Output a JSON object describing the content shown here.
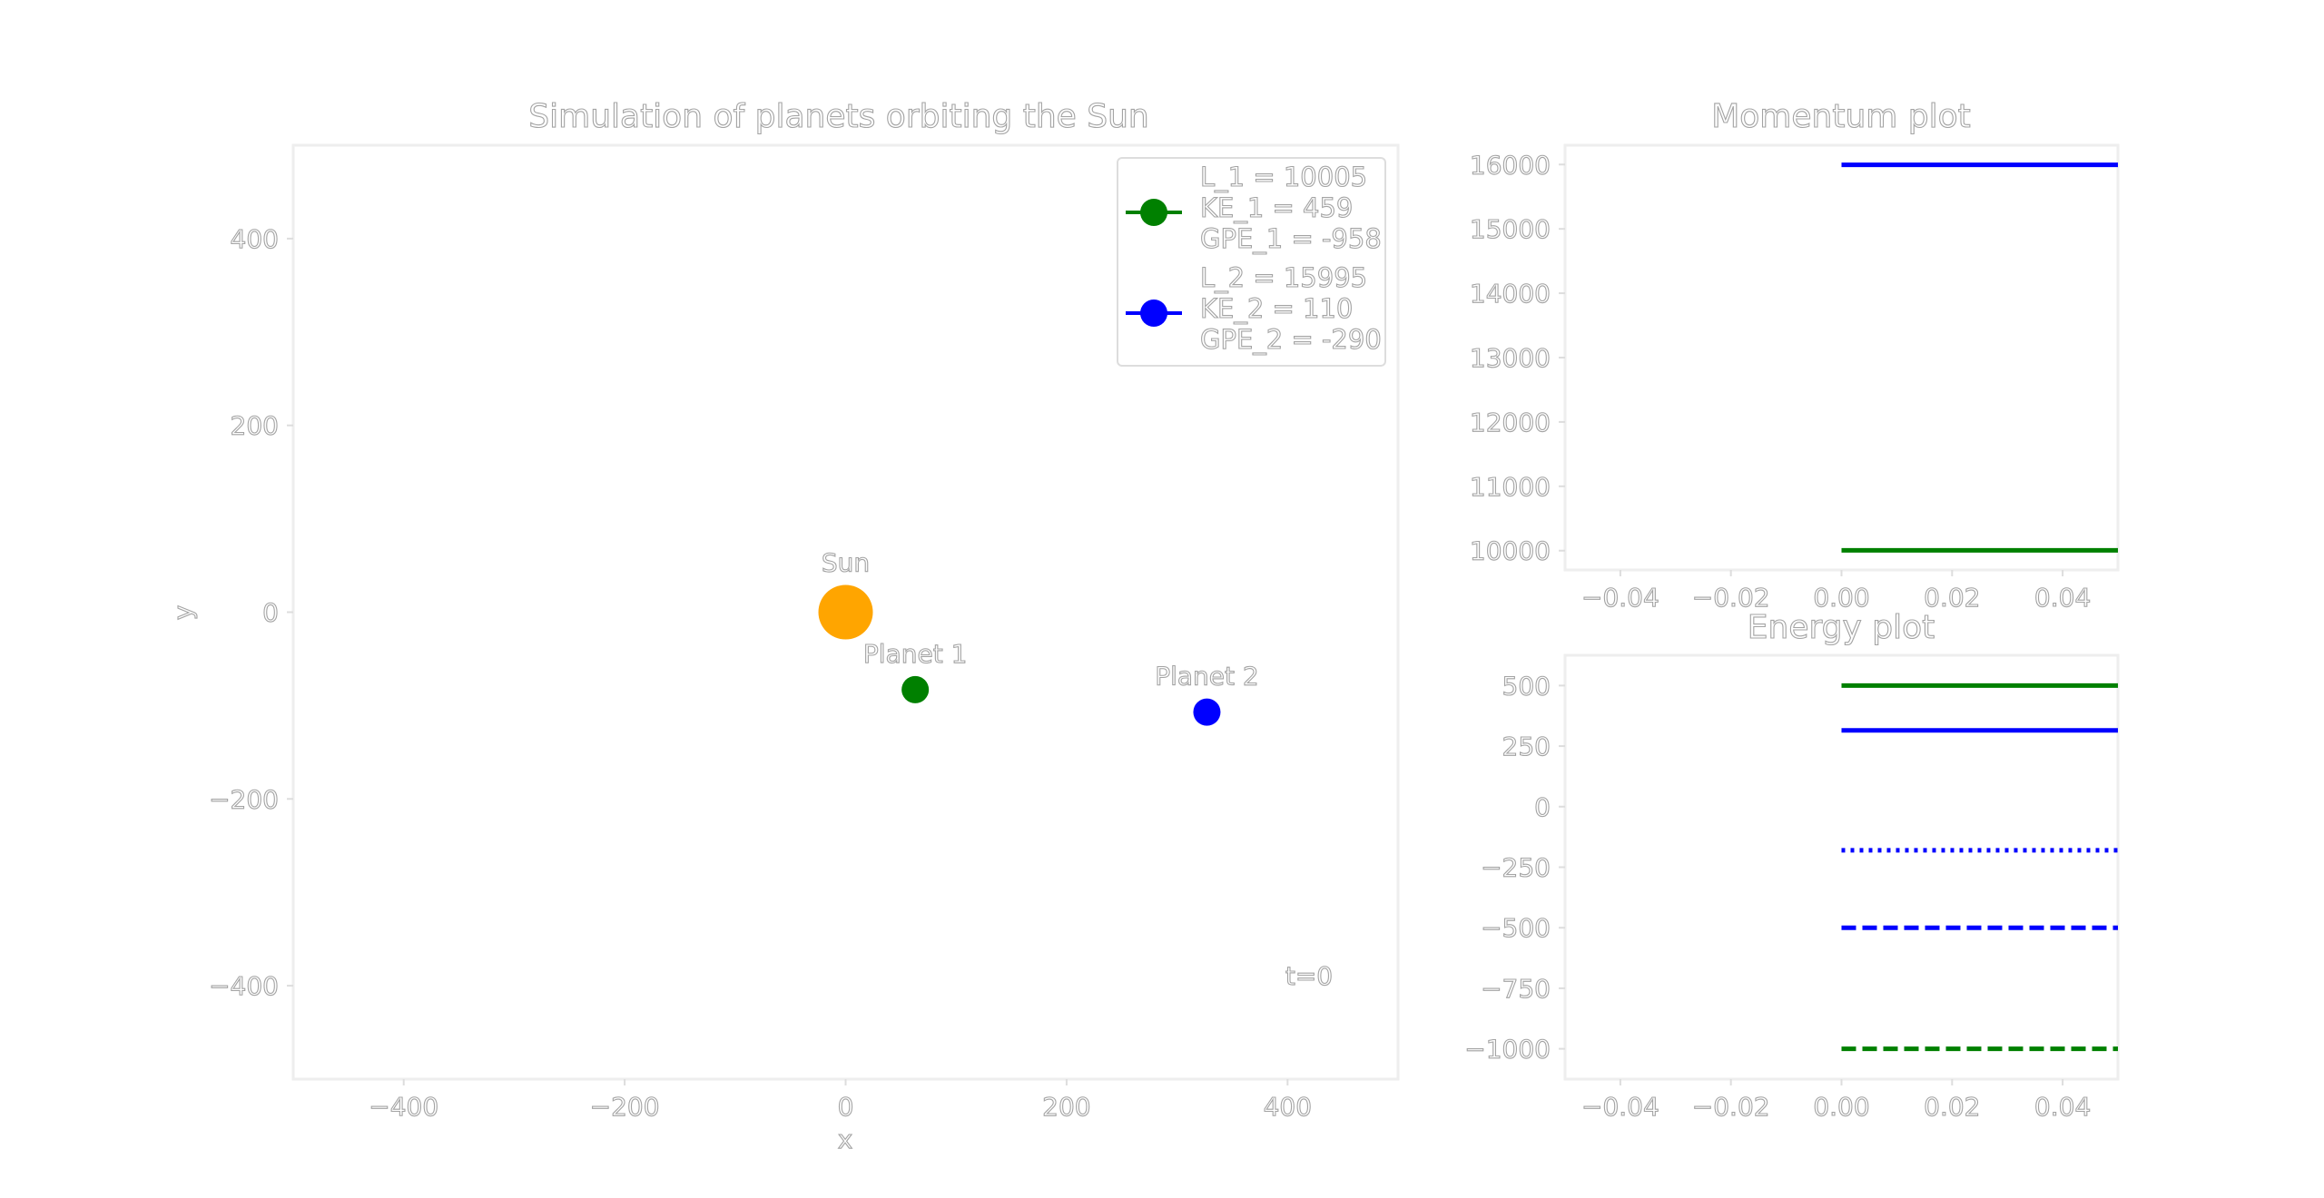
{
  "colors": {
    "sun": "#ffa500",
    "planet_1": "#008000",
    "planet_2": "#0000ff",
    "text": "#a3a3a3",
    "spine": "#eeeeee"
  },
  "chart_data": [
    {
      "id": "orbit",
      "type": "scatter",
      "title": "Simulation of planets orbiting the Sun",
      "xlabel": "x",
      "ylabel": "y",
      "xlim": [
        -500,
        500
      ],
      "ylim": [
        -500,
        500
      ],
      "xticks": [
        -400,
        -200,
        0,
        200,
        400
      ],
      "xtick_labels": [
        "−400",
        "−200",
        "0",
        "200",
        "400"
      ],
      "yticks": [
        400,
        200,
        0,
        -200,
        -400
      ],
      "ytick_labels": [
        "400",
        "200",
        "0",
        "−200",
        "−400"
      ],
      "points": [
        {
          "name": "Sun",
          "x": 0,
          "y": 0,
          "color": "#ffa500",
          "size": "large"
        },
        {
          "name": "Planet 1",
          "x": 63,
          "y": -83,
          "color": "#008000",
          "size": "small"
        },
        {
          "name": "Planet 2",
          "x": 327,
          "y": -107,
          "color": "#0000ff",
          "size": "small"
        }
      ],
      "time_annotation": "t=0",
      "legend": {
        "position": "upper right",
        "entries": [
          {
            "color": "#008000",
            "lines": [
              "L_1 = 10005",
              "KE_1 = 459",
              "GPE_1 = -958"
            ]
          },
          {
            "color": "#0000ff",
            "lines": [
              "L_2 = 15995",
              "KE_2 = 110",
              "GPE_2 = -290"
            ]
          }
        ]
      },
      "grid": false
    },
    {
      "id": "momentum",
      "type": "line",
      "title": "Momentum plot",
      "xlim": [
        -0.05,
        0.05
      ],
      "ylim": [
        9700,
        16300
      ],
      "xticks": [
        -0.04,
        -0.02,
        0.0,
        0.02,
        0.04
      ],
      "xtick_labels": [
        "−0.04",
        "−0.02",
        "0.00",
        "0.02",
        "0.04"
      ],
      "yticks": [
        16000,
        15000,
        14000,
        13000,
        12000,
        11000,
        10000
      ],
      "ytick_labels": [
        "16000",
        "15000",
        "14000",
        "13000",
        "12000",
        "11000",
        "10000"
      ],
      "series": [
        {
          "x": [
            0,
            0.05
          ],
          "y": [
            15995,
            15995
          ],
          "color": "#0000ff",
          "style": "solid"
        },
        {
          "x": [
            0,
            0.05
          ],
          "y": [
            10005,
            10005
          ],
          "color": "#008000",
          "style": "solid"
        }
      ],
      "grid": false
    },
    {
      "id": "energy",
      "type": "line",
      "title": "Energy plot",
      "xlim": [
        -0.05,
        0.05
      ],
      "ylim": [
        -1125,
        625
      ],
      "xticks": [
        -0.04,
        -0.02,
        0.0,
        0.02,
        0.04
      ],
      "xtick_labels": [
        "−0.04",
        "−0.02",
        "0.00",
        "0.02",
        "0.04"
      ],
      "yticks": [
        500,
        250,
        0,
        -250,
        -500,
        -750,
        -1000
      ],
      "ytick_labels": [
        "500",
        "250",
        "0",
        "−250",
        "−500",
        "−750",
        "−1000"
      ],
      "series": [
        {
          "x": [
            0,
            0.05
          ],
          "y": [
            500,
            500
          ],
          "color": "#008000",
          "style": "solid"
        },
        {
          "x": [
            0,
            0.05
          ],
          "y": [
            315,
            315
          ],
          "color": "#0000ff",
          "style": "solid"
        },
        {
          "x": [
            0,
            0.05
          ],
          "y": [
            -180,
            -180
          ],
          "color": "#0000ff",
          "style": "dotted"
        },
        {
          "x": [
            0,
            0.05
          ],
          "y": [
            -500,
            -500
          ],
          "color": "#0000ff",
          "style": "dashed"
        },
        {
          "x": [
            0,
            0.05
          ],
          "y": [
            -1000,
            -1000
          ],
          "color": "#008000",
          "style": "dashed"
        }
      ],
      "grid": false
    }
  ]
}
